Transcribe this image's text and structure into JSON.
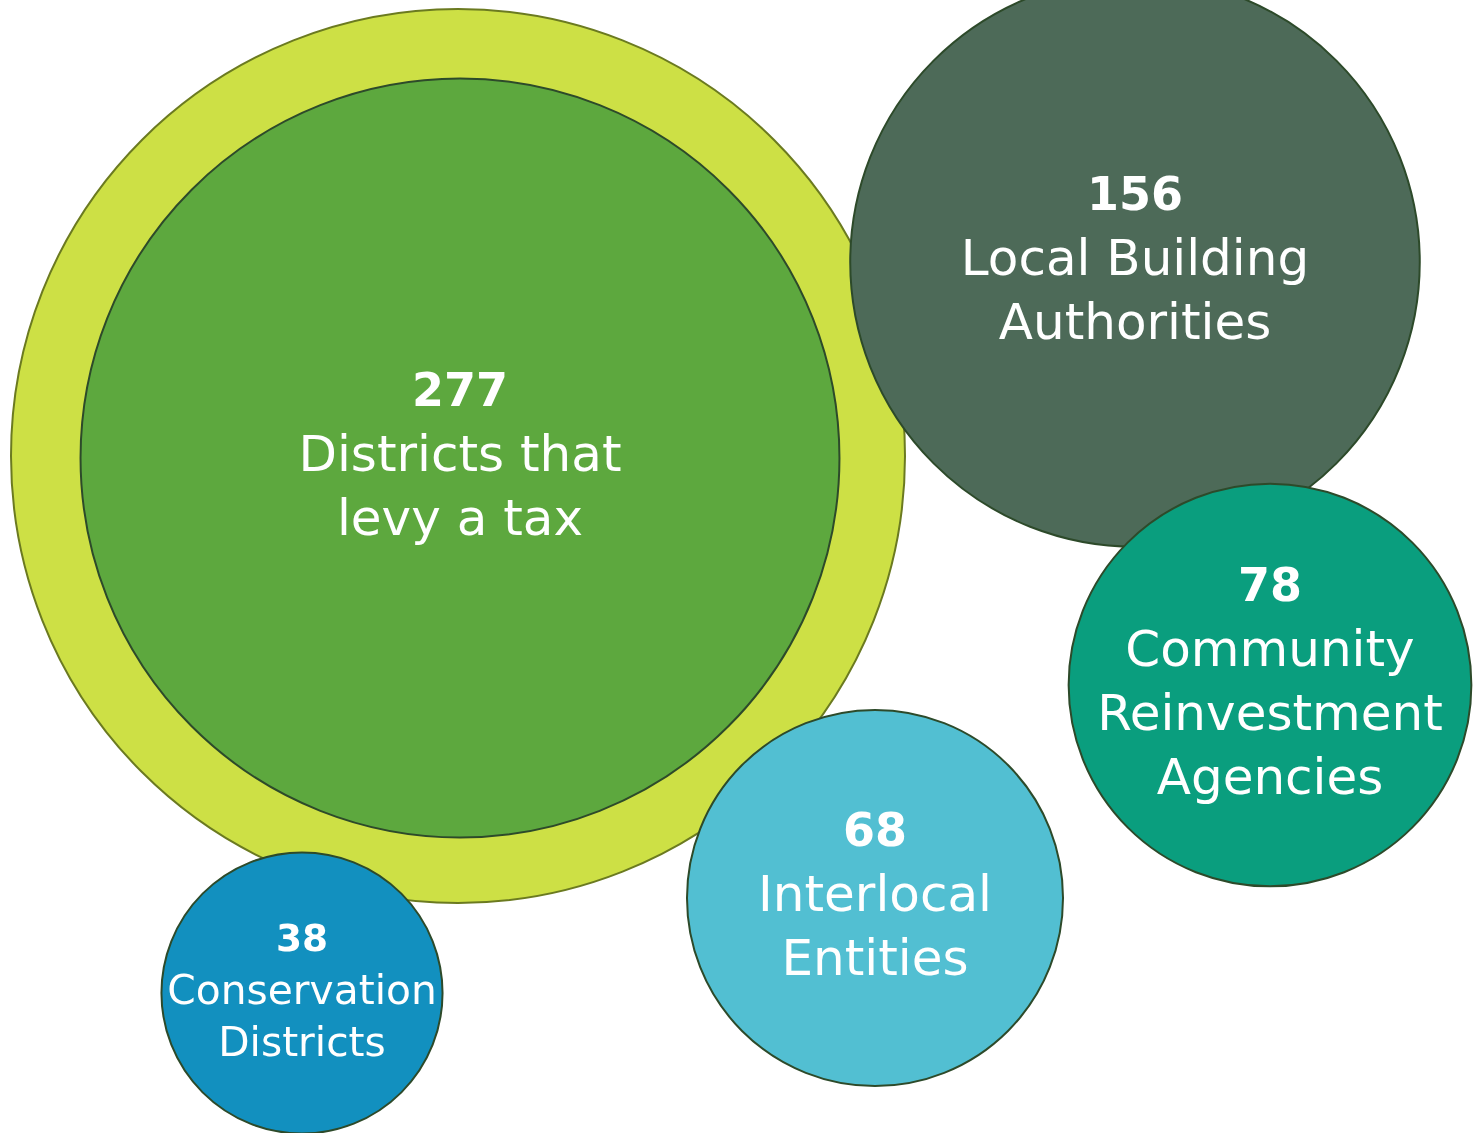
{
  "chart_data": {
    "type": "other",
    "categories": [
      "Districts that\nlevy a tax",
      "Local Building\nAuthorities",
      "Community\nReinvestment\nAgencies",
      "Interlocal\nEntities",
      "Conservation\nDistricts"
    ],
    "values": [
      277,
      156,
      78,
      68,
      38
    ],
    "colors": [
      "#5da83e",
      "#4d6a58",
      "#0a9e7e",
      "#52bfd2",
      "#1290bf"
    ],
    "data_labels": true
  }
}
